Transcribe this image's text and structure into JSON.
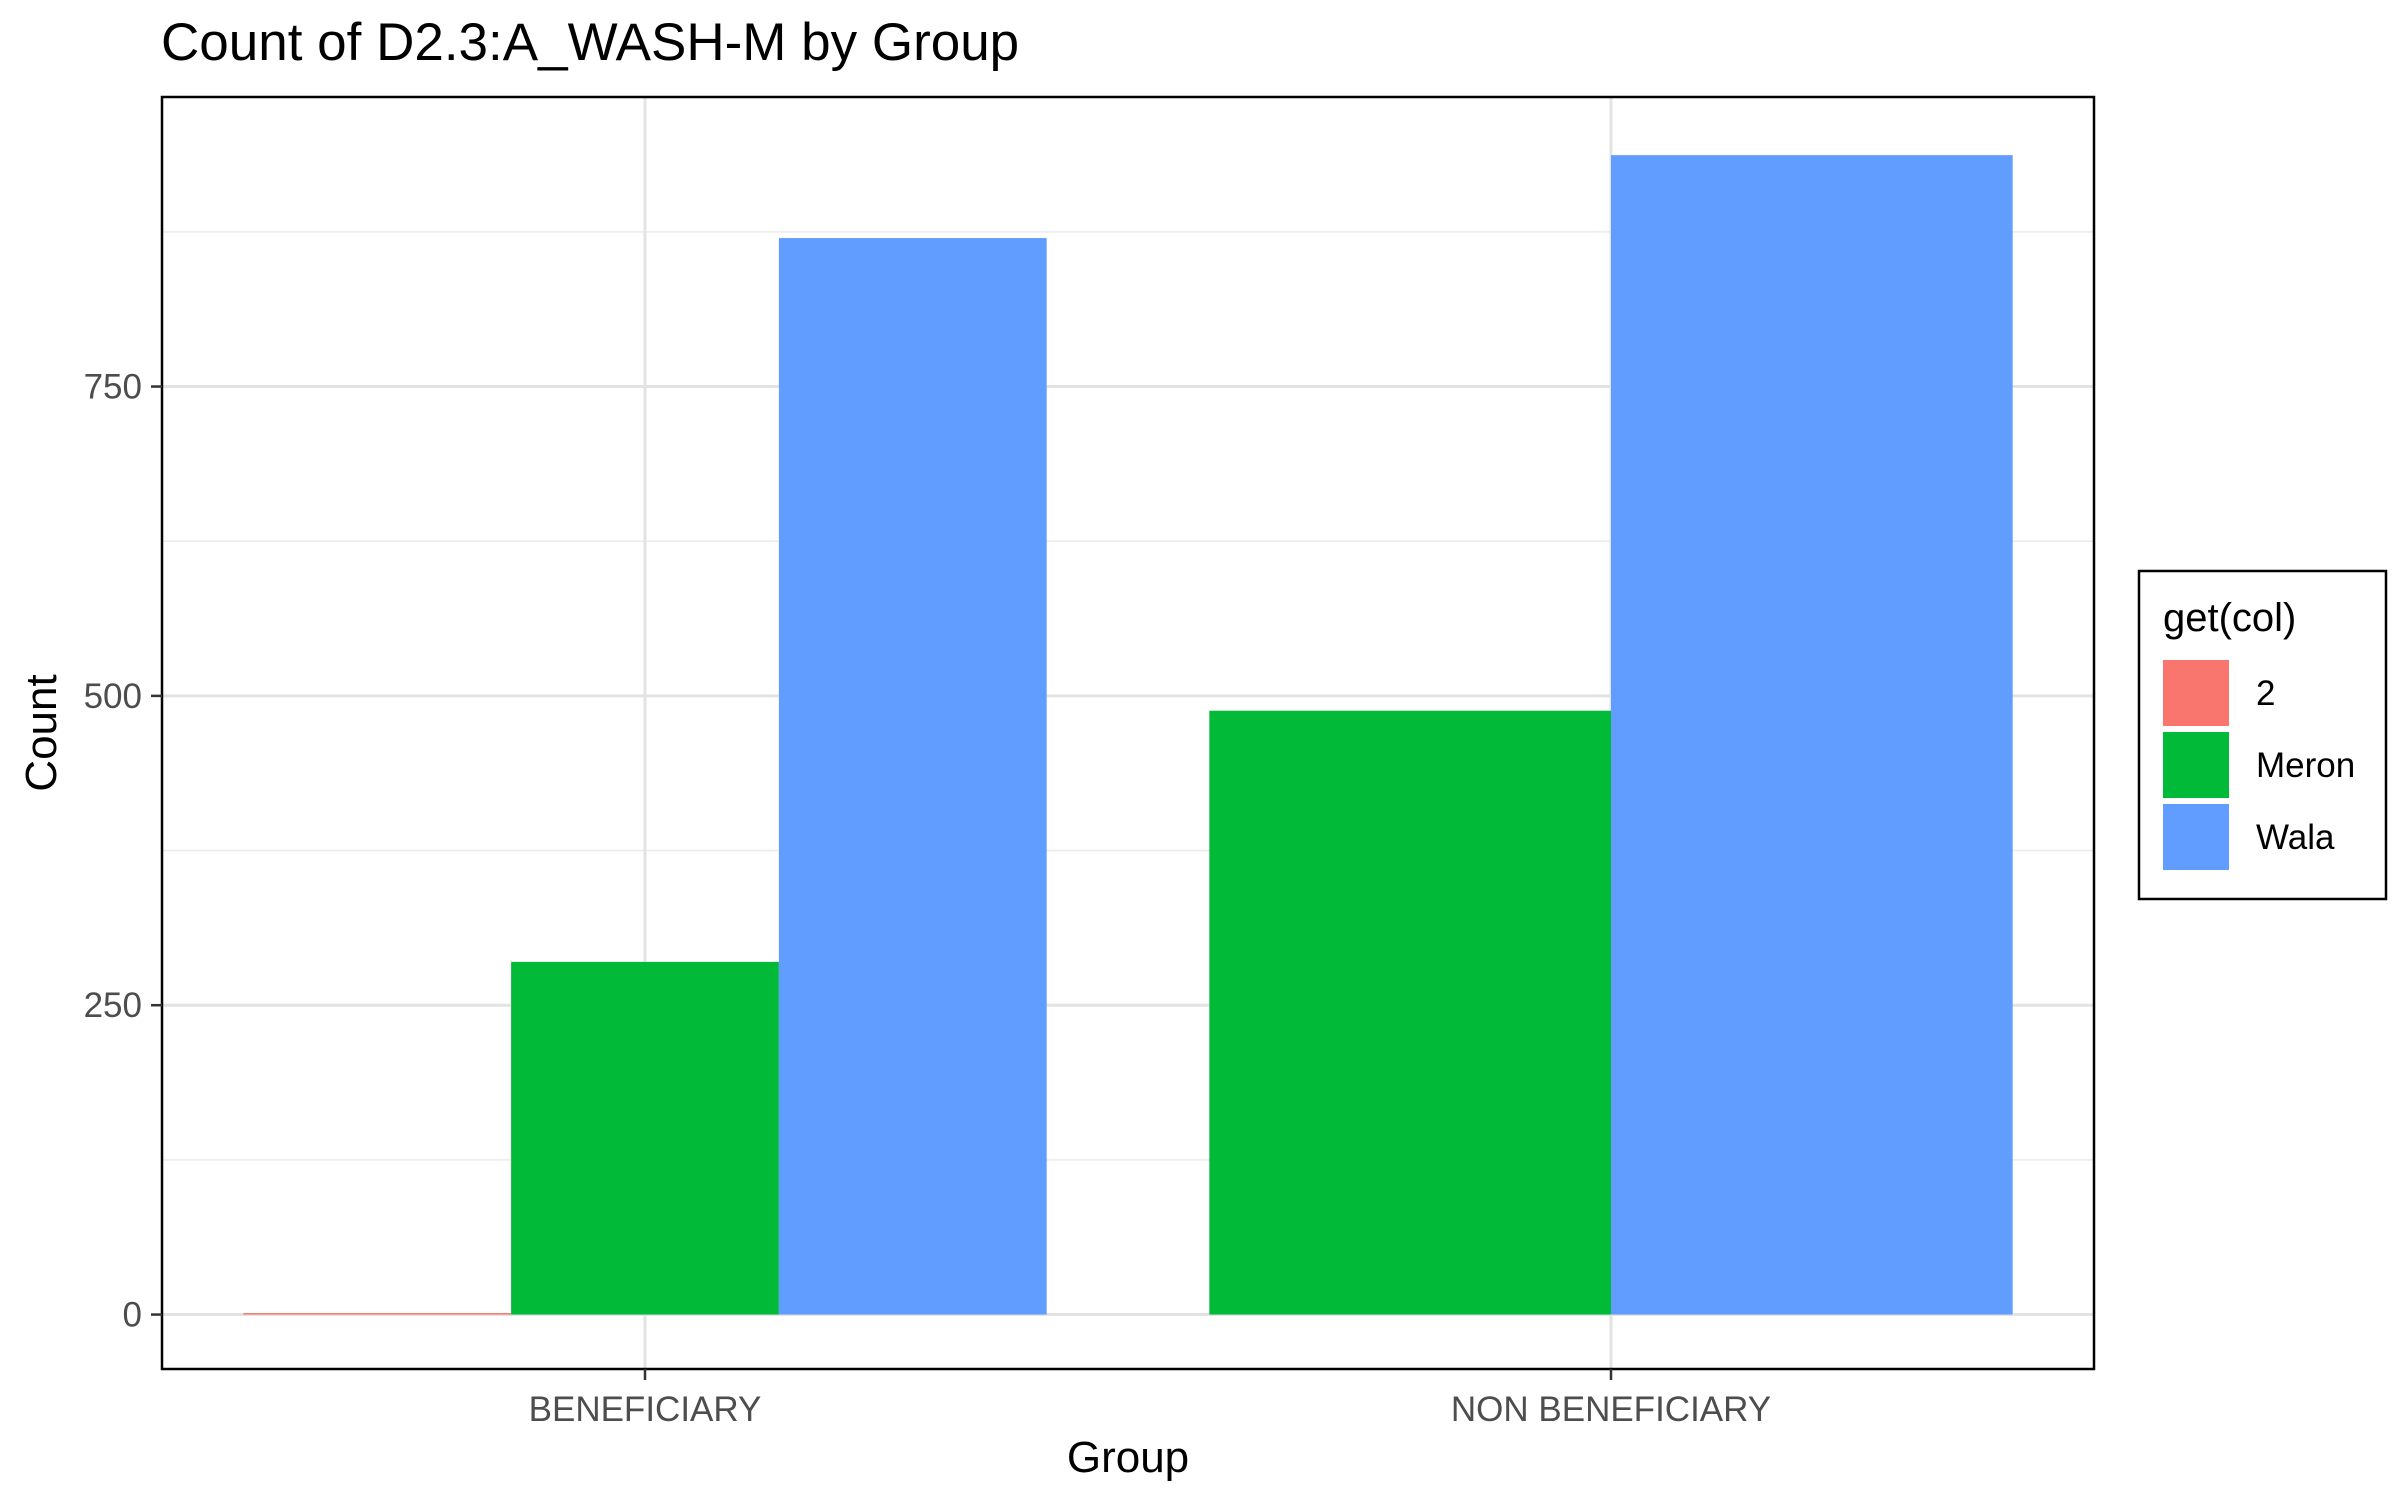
{
  "chart_data": {
    "type": "bar",
    "title": "Count of D2.3:A_WASH-M by Group",
    "xlabel": "Group",
    "ylabel": "Count",
    "categories": [
      "BENEFICIARY",
      "NON BENEFICIARY"
    ],
    "series": [
      {
        "name": "2",
        "color": "#F8766D",
        "values": [
          1,
          null
        ]
      },
      {
        "name": "Meron",
        "color": "#00BA38",
        "values": [
          285,
          488
        ]
      },
      {
        "name": "Wala",
        "color": "#619CFF",
        "values": [
          870,
          937
        ]
      }
    ],
    "ylim": [
      -44,
      984
    ],
    "yticks": [
      0,
      250,
      500,
      750
    ],
    "legend": {
      "title": "get(col)",
      "position": "right"
    },
    "grid": true
  }
}
